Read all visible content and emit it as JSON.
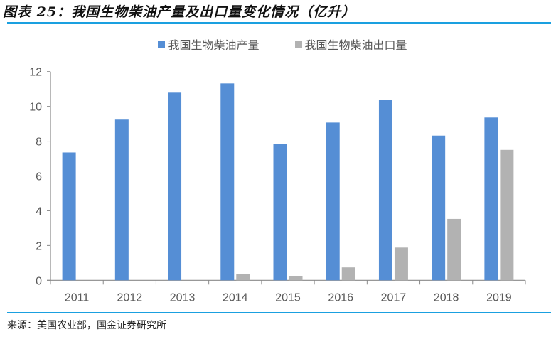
{
  "header": {
    "figure_label": "图表 25：",
    "title": "我国生物柴油产量及出口量变化情况（亿升）"
  },
  "footer": {
    "source": "来源：美国农业部，国金证券研究所"
  },
  "colors": {
    "production": "#558ed5",
    "export": "#b2b2b2",
    "rule": "#1aa0e0",
    "axis": "#898989",
    "tick_text": "#595959"
  },
  "legend": [
    {
      "label": "我国生物柴油产量",
      "color": "#558ed5"
    },
    {
      "label": "我国生物柴油出口量",
      "color": "#b2b2b2"
    }
  ],
  "chart_data": {
    "type": "bar",
    "title": "我国生物柴油产量及出口量变化情况（亿升）",
    "xlabel": "",
    "ylabel": "",
    "categories": [
      "2011",
      "2012",
      "2013",
      "2014",
      "2015",
      "2016",
      "2017",
      "2018",
      "2019"
    ],
    "series": [
      {
        "name": "我国生物柴油产量",
        "values": [
          7.35,
          9.24,
          10.79,
          11.32,
          7.85,
          9.07,
          10.39,
          8.32,
          9.36
        ]
      },
      {
        "name": "我国生物柴油出口量",
        "values": [
          0,
          0,
          0,
          0.38,
          0.22,
          0.74,
          1.88,
          3.53,
          7.5
        ]
      }
    ],
    "ylim": [
      0,
      12
    ],
    "yticks": [
      0,
      2,
      4,
      6,
      8,
      10,
      12
    ],
    "grid": false,
    "legend_position": "top"
  }
}
